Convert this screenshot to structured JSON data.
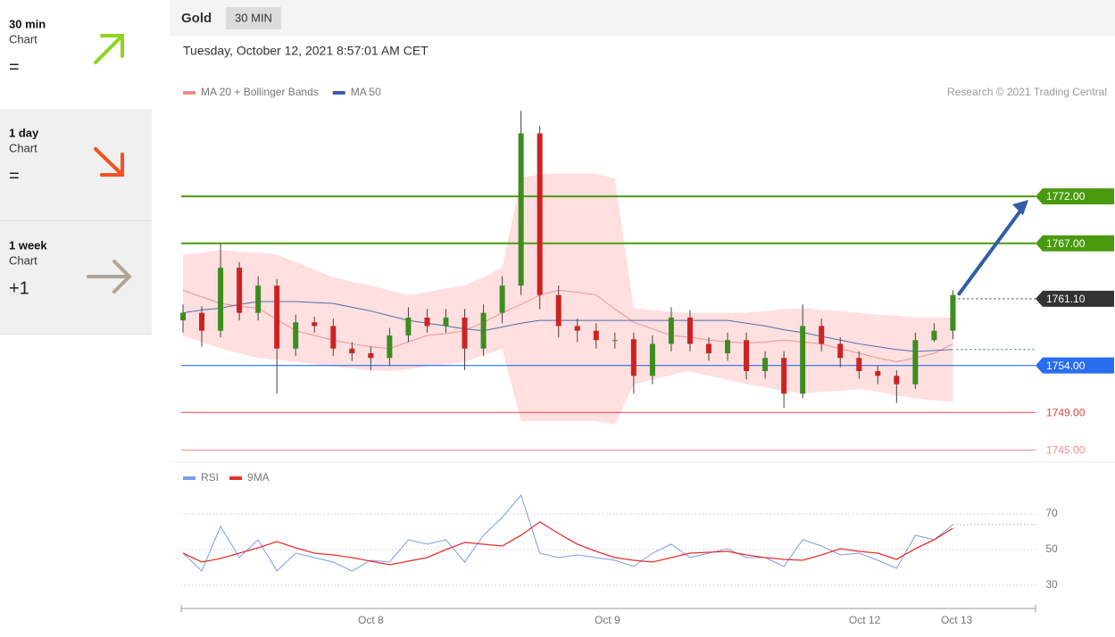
{
  "sidebar": [
    {
      "period": "30 min",
      "label": "Chart",
      "signal": "="
    },
    {
      "period": "1 day",
      "label": "Chart",
      "signal": "="
    },
    {
      "period": "1 week",
      "label": "Chart",
      "signal": "+1"
    }
  ],
  "header": {
    "instrument": "Gold",
    "timeframe": "30 MIN",
    "timestamp": "Tuesday, October 12, 2021 8:57:01 AM CET"
  },
  "chart_data": [
    {
      "type": "candlestick",
      "credit": "Research © 2021 Trading Central",
      "categories": [
        null,
        null,
        null,
        null,
        null,
        null,
        null,
        null,
        null,
        null,
        null,
        null,
        null,
        null,
        null,
        null,
        null,
        null,
        null,
        null,
        null,
        null,
        null,
        null,
        null,
        null,
        null,
        null,
        null,
        null,
        null,
        null,
        null,
        null,
        null,
        null,
        null,
        null,
        null,
        null,
        null,
        null
      ],
      "open": [
        1758.8,
        1759.6,
        1757.7,
        1764.4,
        1759.6,
        1762.5,
        1755.8,
        1758.6,
        1758.2,
        1755.8,
        1755.3,
        1754.8,
        1757.2,
        1759.1,
        1758.2,
        1759.1,
        1755.8,
        1759.6,
        1762.5,
        1778.7,
        1761.5,
        1758.2,
        1757.7,
        1756.7,
        1756.8,
        1752.9,
        1756.3,
        1759.1,
        1756.3,
        1755.3,
        1756.7,
        1753.4,
        1754.8,
        1751.0,
        1758.2,
        1756.3,
        1754.8,
        1753.4,
        1752.9,
        1752.0,
        1756.7,
        1757.7
      ],
      "high": [
        1760.5,
        1760.3,
        1767.0,
        1765.0,
        1763.5,
        1763.2,
        1759.4,
        1759.2,
        1759.0,
        1756.5,
        1756.0,
        1758.0,
        1760.2,
        1760.0,
        1760.0,
        1760.0,
        1760.5,
        1763.5,
        1781.1,
        1779.5,
        1762.5,
        1759.0,
        1758.5,
        1757.5,
        1757.5,
        1757.2,
        1760.2,
        1759.9,
        1757.0,
        1757.5,
        1757.5,
        1755.5,
        1755.5,
        1760.5,
        1759.0,
        1757.0,
        1755.5,
        1754.0,
        1753.5,
        1757.5,
        1758.5,
        1762.0
      ],
      "low": [
        1757.5,
        1756.0,
        1757.0,
        1758.8,
        1758.8,
        1751.0,
        1755.0,
        1757.5,
        1755.0,
        1754.5,
        1753.5,
        1754.0,
        1756.5,
        1757.5,
        1757.5,
        1753.5,
        1755.0,
        1758.5,
        1761.5,
        1760.0,
        1757.0,
        1756.5,
        1755.8,
        1755.8,
        1751.0,
        1752.0,
        1755.5,
        1755.5,
        1754.5,
        1754.5,
        1752.5,
        1752.6,
        1749.5,
        1750.5,
        1755.5,
        1753.8,
        1752.6,
        1752.0,
        1750.0,
        1751.5,
        1756.5,
        1756.8
      ],
      "close": [
        1759.6,
        1757.7,
        1764.4,
        1759.6,
        1762.5,
        1755.8,
        1758.6,
        1758.2,
        1755.8,
        1755.3,
        1754.8,
        1757.2,
        1759.1,
        1758.2,
        1759.1,
        1755.8,
        1759.6,
        1762.5,
        1778.7,
        1761.5,
        1758.2,
        1757.7,
        1756.7,
        1756.7,
        1752.9,
        1756.3,
        1759.1,
        1756.3,
        1755.3,
        1756.7,
        1753.4,
        1754.8,
        1751.0,
        1758.2,
        1756.3,
        1754.8,
        1753.4,
        1752.9,
        1752.0,
        1756.7,
        1757.7,
        1761.5
      ],
      "up_color": "#3c8d1e",
      "down_color": "#cc2222",
      "series": [
        {
          "name": "MA 20 + Bollinger Bands",
          "color": "#f08a8a",
          "values": [
            1762.0,
            1761.3,
            1760.6,
            1760.3,
            1760.1,
            1758.9,
            1757.7,
            1757.2,
            1756.7,
            1756.3,
            1756.0,
            1755.8,
            1756.5,
            1757.2,
            1757.4,
            1757.7,
            1758.6,
            1759.6,
            1760.5,
            1761.5,
            1762.0,
            1761.8,
            1761.5,
            1760.0,
            1758.6,
            1757.9,
            1757.2,
            1757.0,
            1756.7,
            1756.5,
            1756.4,
            1756.5,
            1756.7,
            1756.5,
            1756.3,
            1755.8,
            1755.3,
            1754.8,
            1754.4,
            1754.8,
            1755.3,
            1756.3
          ],
          "upper": [
            1765.8,
            1766.0,
            1766.3,
            1766.1,
            1766.0,
            1765.8,
            1765.0,
            1764.2,
            1763.4,
            1762.9,
            1762.5,
            1762.0,
            1761.5,
            1761.8,
            1762.2,
            1762.5,
            1763.4,
            1764.4,
            1773.9,
            1774.4,
            1774.4,
            1774.4,
            1774.4,
            1773.9,
            1760.1,
            1759.9,
            1759.7,
            1759.6,
            1759.6,
            1759.6,
            1759.6,
            1759.8,
            1760.0,
            1760.1,
            1759.9,
            1759.8,
            1759.6,
            1759.4,
            1759.3,
            1759.1,
            1759.1,
            1759.1
          ],
          "lower": [
            1757.2,
            1756.5,
            1755.8,
            1755.3,
            1754.8,
            1754.6,
            1754.4,
            1754.1,
            1753.9,
            1753.7,
            1753.5,
            1753.4,
            1753.6,
            1753.9,
            1754.1,
            1754.4,
            1755.1,
            1755.8,
            1748.1,
            1748.1,
            1748.1,
            1748.1,
            1748.1,
            1747.7,
            1752.0,
            1752.5,
            1753.0,
            1753.4,
            1752.9,
            1752.5,
            1752.0,
            1751.7,
            1751.3,
            1751.0,
            1751.2,
            1751.3,
            1751.5,
            1751.2,
            1750.8,
            1750.5,
            1750.3,
            1750.1
          ]
        },
        {
          "name": "MA 50",
          "color": "#3a5fa8",
          "values": [
            1759.6,
            1759.9,
            1760.1,
            1760.5,
            1760.8,
            1760.8,
            1760.8,
            1760.7,
            1760.6,
            1760.2,
            1759.8,
            1759.3,
            1758.8,
            1758.5,
            1758.2,
            1757.9,
            1757.7,
            1758.1,
            1758.5,
            1758.8,
            1758.8,
            1758.8,
            1758.8,
            1758.8,
            1758.8,
            1758.8,
            1758.8,
            1758.8,
            1758.8,
            1758.8,
            1758.5,
            1758.2,
            1757.8,
            1757.5,
            1757.1,
            1756.7,
            1756.3,
            1756.0,
            1755.7,
            1755.5,
            1755.6,
            1755.7
          ]
        }
      ],
      "levels": [
        {
          "value": 1772,
          "label": "1772.00",
          "color": "#4a9a0e",
          "boxed": true,
          "dotted": false
        },
        {
          "value": 1767,
          "label": "1767.00",
          "color": "#4a9a0e",
          "boxed": true,
          "dotted": false
        },
        {
          "value": 1761.1,
          "label": "1761.10",
          "color": "#333333",
          "boxed": true,
          "dotted": true
        },
        {
          "value": 1754,
          "label": "1754.00",
          "color": "#2a6ef0",
          "boxed": true,
          "dotted": false
        },
        {
          "value": 1749,
          "label": "1749.00",
          "color": "#e84040",
          "boxed": false,
          "dotted": false
        },
        {
          "value": 1745,
          "label": "1745.00",
          "color": "#f28a8a",
          "boxed": false,
          "dotted": false
        }
      ],
      "xlim": [
        0,
        45.4
      ],
      "ylim": [
        1744,
        1781.5
      ]
    },
    {
      "type": "line",
      "series": [
        {
          "name": "RSI",
          "color": "#7b9be8",
          "values": [
            48,
            38,
            63,
            45.5,
            55.5,
            38,
            48,
            45.5,
            43,
            38,
            44,
            43,
            55.5,
            53,
            55.5,
            43,
            58,
            68,
            80.5,
            48,
            45.5,
            47,
            45.5,
            44,
            40.5,
            48,
            53,
            45.5,
            48,
            50.5,
            45.5,
            45.5,
            40.5,
            55.5,
            52,
            47,
            48,
            44,
            39.5,
            58,
            55.5,
            64
          ]
        },
        {
          "name": "9MA",
          "color": "#e8302a",
          "values": [
            48,
            43,
            45,
            48,
            51,
            54.5,
            51,
            48,
            47,
            45.5,
            43.5,
            41.5,
            43.5,
            45.5,
            50,
            54,
            53,
            52,
            58,
            65.5,
            59,
            53,
            49,
            45.5,
            44,
            43,
            45.5,
            48,
            48.5,
            49,
            47,
            45.5,
            44.5,
            44,
            47,
            50.5,
            49,
            48,
            44.5,
            50.5,
            55.5,
            62
          ]
        }
      ],
      "xlim": [
        0,
        45.4
      ],
      "xticks": [
        {
          "value": 10,
          "label": "Oct 8"
        },
        {
          "value": 22.6,
          "label": "Oct 9"
        },
        {
          "value": 36.3,
          "label": "Oct 12"
        },
        {
          "value": 41.2,
          "label": "Oct 13"
        }
      ],
      "ylim": [
        20,
        95
      ],
      "yticks": [
        30,
        50,
        70
      ],
      "grid": true
    }
  ]
}
